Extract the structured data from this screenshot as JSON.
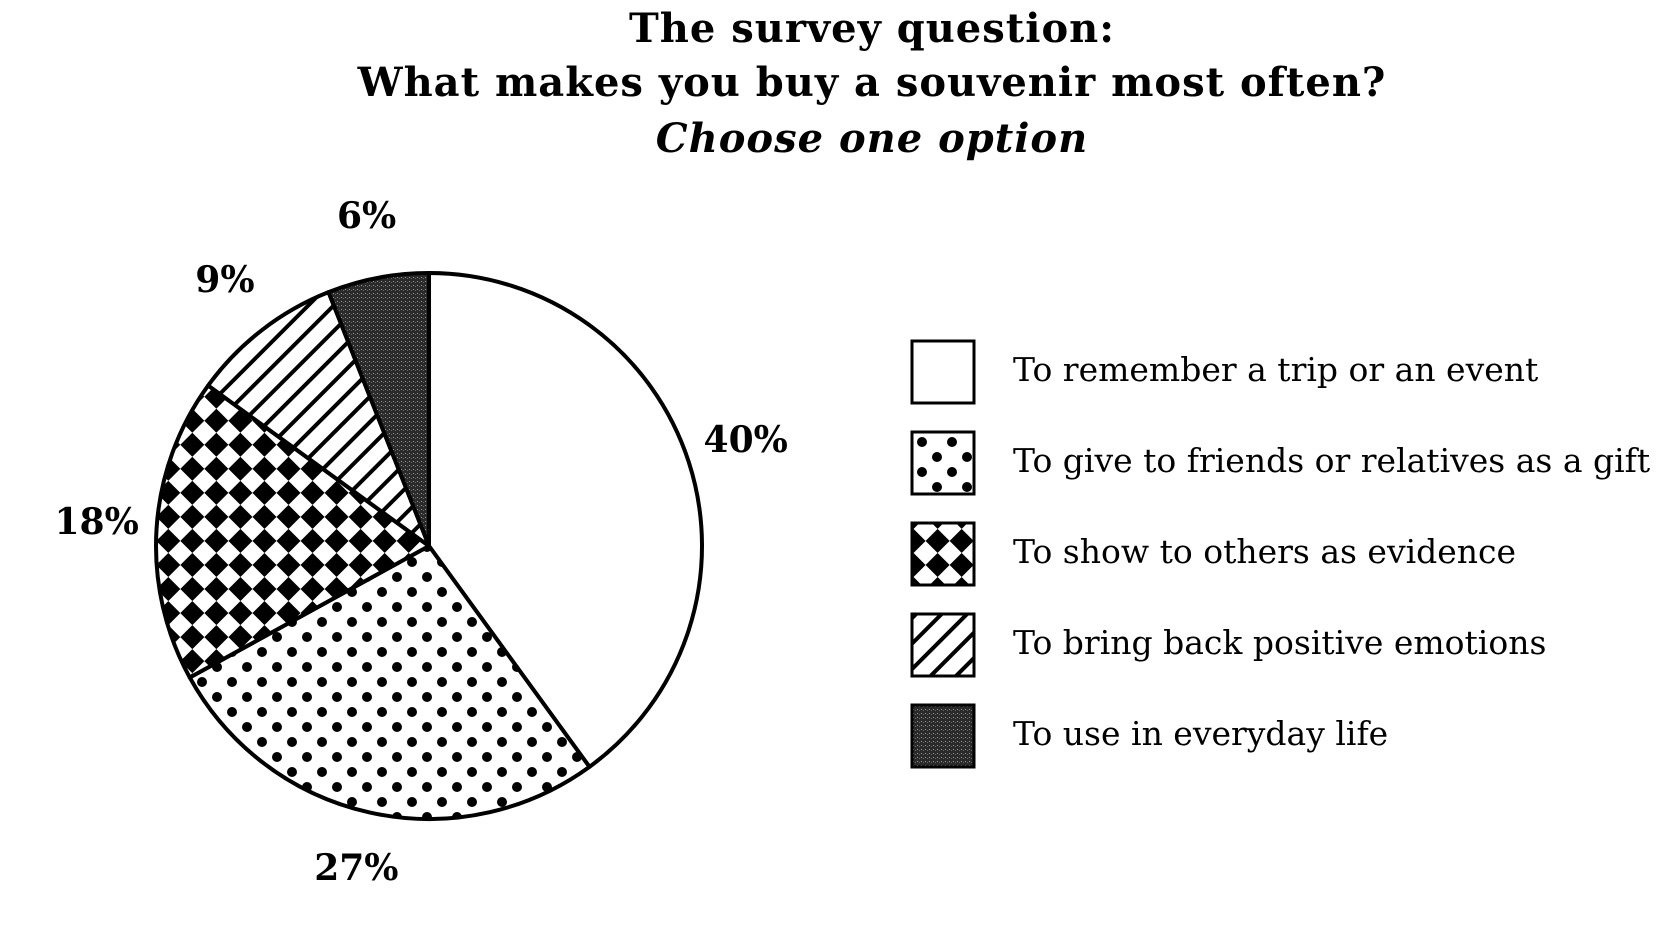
{
  "chart_data": {
    "type": "pie",
    "title": [
      "The survey question:",
      "What makes you buy a souvenir most often?"
    ],
    "subtitle": "Choose one option",
    "categories": [
      "To remember a trip or an event",
      "To give to friends or relatives as a gift",
      "To show to others as evidence",
      "To bring back positive emotions",
      "To use in everyday life"
    ],
    "values": [
      40,
      27,
      18,
      9,
      6
    ],
    "value_labels": [
      "40%",
      "27%",
      "18%",
      "9%",
      "6%"
    ]
  }
}
